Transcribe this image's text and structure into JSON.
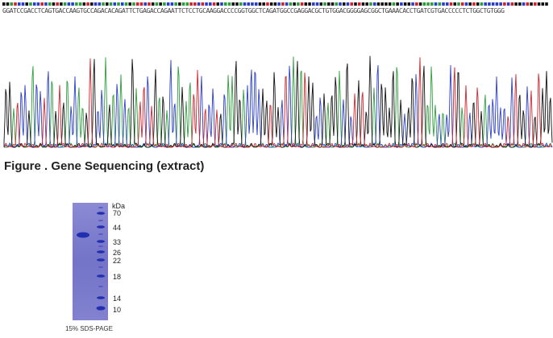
{
  "sequence": {
    "text": "GGATCCGACCTCAGTGACCAAGTGCCAGACACAGATTCTGAGACCAGAATTCTCCTGCAAGGACCCCGGTGGCTCAGATGGCCGAGGACGCTGTGGACGGGGAGCGGCTGAAACACCTGATCGTGACCCCCTCTGGCTGTGGG",
    "base_colors": {
      "A": "#2e9e3c",
      "C": "#2a3fc8",
      "G": "#111111",
      "T": "#d0242c"
    }
  },
  "figure_caption": "Figure . Gene Sequencing (extract)",
  "gel": {
    "unit_label": "kDa",
    "marker_labels": [
      "70",
      "44",
      "33",
      "26",
      "22",
      "18",
      "14",
      "10"
    ],
    "caption": "15% SDS-PAGE",
    "lane_color": "#7777cc",
    "band_color": "#2230b0"
  }
}
